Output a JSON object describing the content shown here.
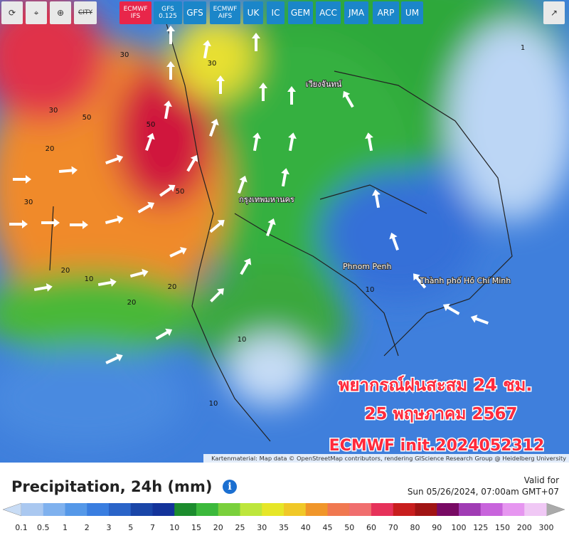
{
  "toolbar": {
    "city": "CITY",
    "models": [
      "ECMWF IFS",
      "GFS 0.125",
      "GFS",
      "ECMWF AIFS",
      "UK",
      "IC",
      "GEM",
      "ACC",
      "JMA",
      "ARP",
      "UM"
    ]
  },
  "map": {
    "overlay_lines": [
      "พยากรณ์ฝนสะสม 24 ชม.",
      "25 พฤษภาคม 2567",
      "ECMWF init.2024052312"
    ],
    "places": [
      "Phnom Penh",
      "Thành phố Hồ Chí Minh",
      "กรุงเทพมหานคร",
      "เวียงจันทน์"
    ],
    "contour_labels": [
      30,
      50,
      20,
      30,
      50,
      20,
      30,
      20,
      10,
      20,
      10,
      50,
      30,
      10,
      10,
      1
    ],
    "attribution": "Kartenmaterial: Map data © OpenStreetMap contributors, rendering GIScience Research Group @ Heidelberg University"
  },
  "footer": {
    "title": "Precipitation, 24h (mm)",
    "valid_label": "Valid for",
    "valid_time": "Sun 05/26/2024, 07:00am GMT+07"
  },
  "legend": {
    "stops": [
      0.1,
      0.5,
      1,
      2,
      3,
      5,
      7,
      10,
      15,
      20,
      25,
      30,
      35,
      40,
      45,
      50,
      60,
      70,
      80,
      90,
      100,
      125,
      150,
      200,
      300
    ],
    "colors": [
      "#aac8f0",
      "#7fb1ee",
      "#5598e8",
      "#3a7ee0",
      "#2a64c8",
      "#1a46a8",
      "#13339a",
      "#1c8c2e",
      "#3cb93c",
      "#7ad03c",
      "#bde63c",
      "#e6e628",
      "#f0c828",
      "#f0962a",
      "#f07850",
      "#f06e6e",
      "#e6325a",
      "#c81e1e",
      "#a01414",
      "#780a64",
      "#a03cb4",
      "#c864dc",
      "#e696f0",
      "#f0c8f5"
    ],
    "low_color": "#c8dcf5",
    "high_color": "#aaaaaa"
  }
}
